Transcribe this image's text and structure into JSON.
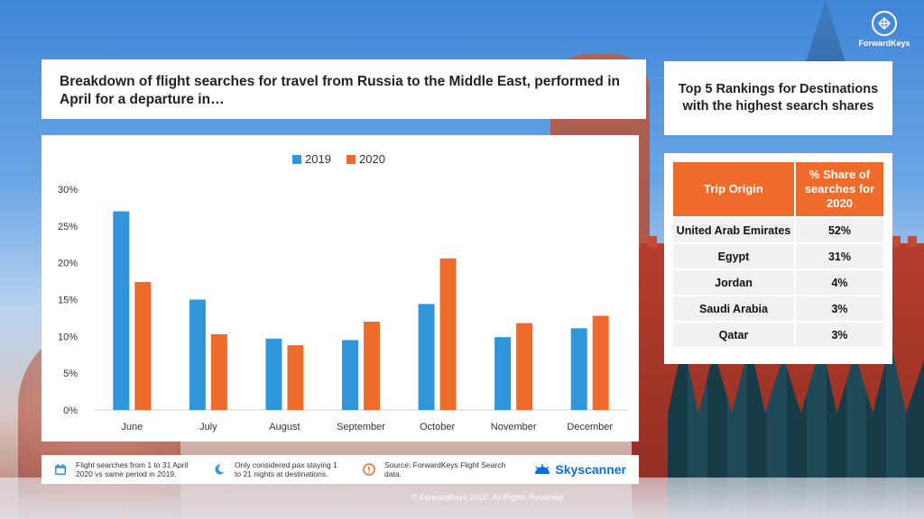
{
  "title": "Breakdown of flight searches for travel from Russia to the Middle East, performed in April for a departure in…",
  "rankings": {
    "title": "Top 5 Rankings for Destinations with the highest search shares",
    "headers": [
      "Trip Origin",
      "% Share of searches for 2020"
    ],
    "rows": [
      {
        "origin": "United Arab Emirates",
        "share": "52%"
      },
      {
        "origin": "Egypt",
        "share": "31%"
      },
      {
        "origin": "Jordan",
        "share": "4%"
      },
      {
        "origin": "Saudi Arabia",
        "share": "3%"
      },
      {
        "origin": "Qatar",
        "share": "3%"
      }
    ]
  },
  "footer": {
    "note1": "Flight searches from 1 to 31 April 2020 vs same period in 2019.",
    "note2": "Only considered pax staying 1 to 21 nights at destinations.",
    "note3": "Source: ForwardKeys Flight Search data.",
    "sponsor": "Skyscanner",
    "icons": [
      "calendar-icon",
      "moon-icon",
      "info-icon",
      "sun-icon"
    ]
  },
  "copyright": "© ForwardKeys 2020. All Rights Reserved",
  "brand": {
    "name": "ForwardKeys"
  },
  "colors": {
    "series2019": "#2f96dc",
    "series2020": "#ef6b2c",
    "tableHeader": "#ef6b2c",
    "sponsor": "#0770e3"
  },
  "chart_data": {
    "type": "bar",
    "categories": [
      "June",
      "July",
      "August",
      "September",
      "October",
      "November",
      "December"
    ],
    "series": [
      {
        "name": "2019",
        "values": [
          27.0,
          15.0,
          9.7,
          9.5,
          14.4,
          9.9,
          11.1
        ]
      },
      {
        "name": "2020",
        "values": [
          17.4,
          10.3,
          8.8,
          12.0,
          20.6,
          11.8,
          12.8
        ]
      }
    ],
    "ylim": [
      0,
      30
    ],
    "yticks": [
      "0%",
      "5%",
      "10%",
      "15%",
      "20%",
      "25%",
      "30%"
    ],
    "legend_position": "top-center",
    "grid": false
  }
}
